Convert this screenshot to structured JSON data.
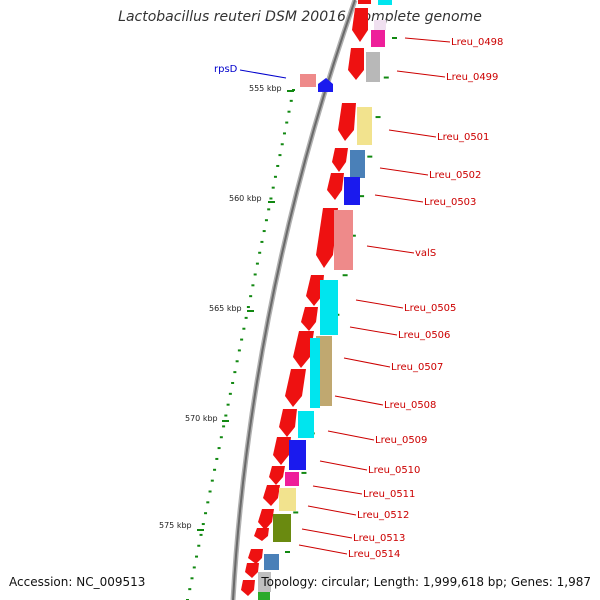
{
  "title": "Lactobacillus reuteri DSM 20016, complete genome",
  "footer": {
    "accession": "Accession: NC_009513",
    "summary": "Topology: circular; Length: 1,999,618 bp; Genes: 1,987"
  },
  "colors": {
    "backbone": "#777777",
    "gene_label": "#cc0000",
    "special_label": "#0000cc",
    "tick": "#118811"
  },
  "kbp_labels": [
    "555 kbp",
    "560 kbp",
    "565 kbp",
    "570 kbp",
    "575 kbp"
  ],
  "gene_labels": [
    "Lreu_0498",
    "Lreu_0499",
    "Lreu_0501",
    "Lreu_0502",
    "Lreu_0503",
    "valS",
    "Lreu_0505",
    "Lreu_0506",
    "Lreu_0507",
    "Lreu_0508",
    "Lreu_0509",
    "Lreu_0510",
    "Lreu_0511",
    "Lreu_0512",
    "Lreu_0513",
    "Lreu_0514"
  ],
  "special_label": "rpsD"
}
